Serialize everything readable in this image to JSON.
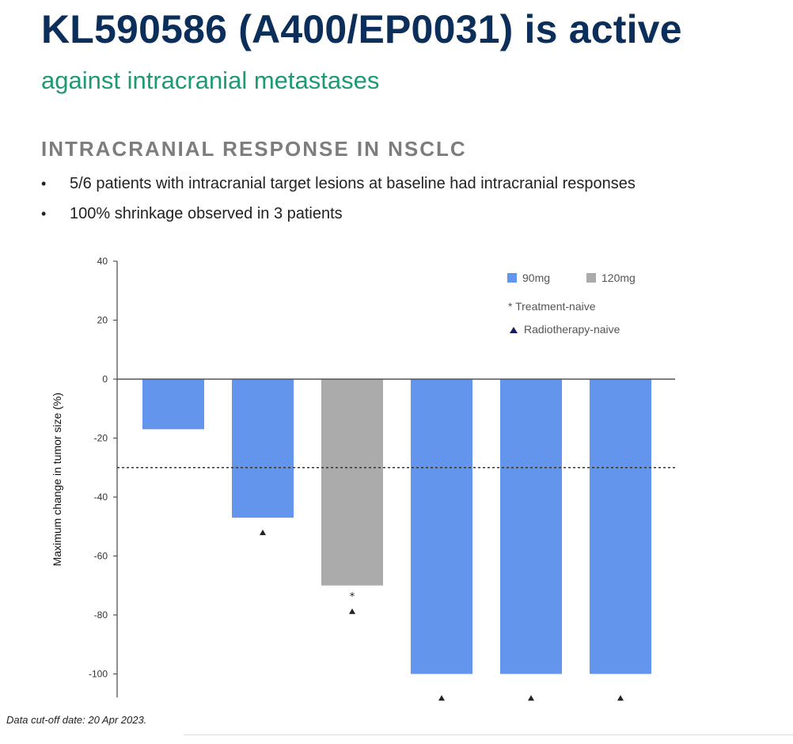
{
  "slide": {
    "title": "KL590586 (A400/EP0031) is active",
    "subtitle": "against intracranial metastases",
    "section_heading": "INTRACRANIAL RESPONSE IN NSCLC",
    "bullets": [
      "5/6 patients with intracranial target lesions at baseline had intracranial responses",
      "100% shrinkage observed in 3 patients"
    ],
    "footnote": "Data cut-off date: 20 Apr 2023."
  },
  "colors": {
    "dose_90mg": "#6495ED",
    "dose_120mg": "#ABABAB",
    "axis": "#555555",
    "marker": "#222222",
    "radiotherapy_naive_marker": "#1a1a5e"
  },
  "chart_data": {
    "type": "bar",
    "title": "",
    "xlabel": "",
    "ylabel": "Maximum change in tumor size (%)",
    "ylim": [
      -108,
      40
    ],
    "yticks": [
      40,
      20,
      0,
      -20,
      -40,
      -60,
      -80,
      -100
    ],
    "reference_line": -30,
    "legend": {
      "placement": "top-right",
      "entries": [
        {
          "label": "90mg",
          "color": "#6495ED"
        },
        {
          "label": "120mg",
          "color": "#ABABAB"
        }
      ],
      "annotations": [
        {
          "symbol": "*",
          "label": "Treatment-naive"
        },
        {
          "symbol": "▲",
          "label": "Radiotherapy-naive"
        }
      ]
    },
    "bars": [
      {
        "value": -17,
        "dose": "90mg",
        "markers": ""
      },
      {
        "value": -47,
        "dose": "90mg",
        "markers": "▲"
      },
      {
        "value": -70,
        "dose": "120mg",
        "markers": "*▲"
      },
      {
        "value": -100,
        "dose": "90mg",
        "markers": "▲"
      },
      {
        "value": -100,
        "dose": "90mg",
        "markers": "▲"
      },
      {
        "value": -100,
        "dose": "90mg",
        "markers": "▲"
      }
    ]
  }
}
